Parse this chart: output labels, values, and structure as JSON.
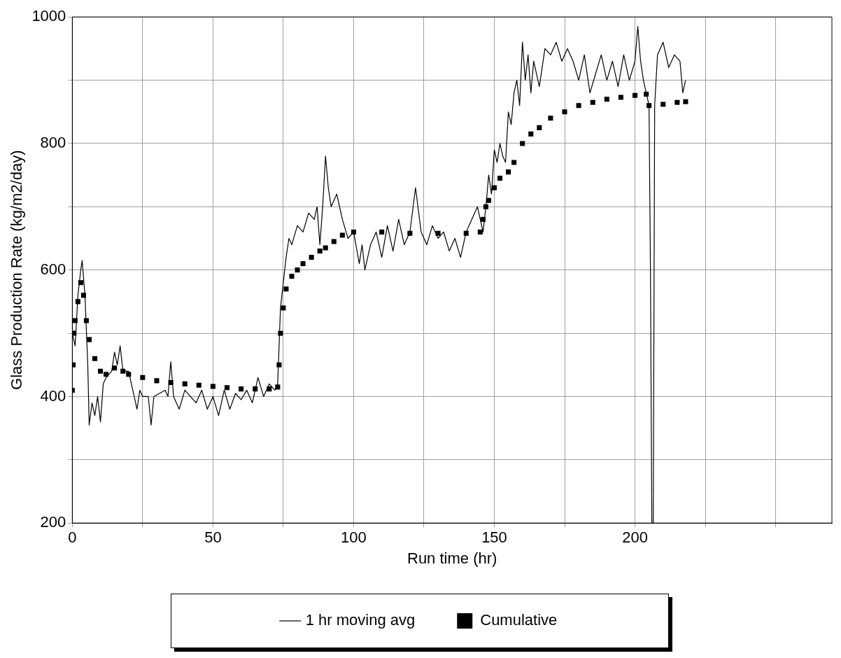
{
  "chart_data": {
    "type": "line",
    "xlabel": "Run time (hr)",
    "ylabel": "Glass Production Rate (kg/m2/day)",
    "xlim": [
      0,
      270
    ],
    "xticks": [
      0,
      {
        "value": 25,
        "label": null
      },
      50,
      {
        "value": 75,
        "label": null
      },
      100,
      {
        "value": 125,
        "label": null
      },
      150,
      {
        "value": 175,
        "label": null
      },
      200,
      {
        "value": 225,
        "label": null
      },
      {
        "value": 250,
        "label": null
      }
    ],
    "ylim": [
      200,
      1000
    ],
    "yticks": [
      200,
      {
        "value": 300,
        "label": null
      },
      400,
      {
        "value": 500,
        "label": null
      },
      600,
      {
        "value": 700,
        "label": null
      },
      800,
      {
        "value": 900,
        "label": null
      },
      1000
    ],
    "grid": true,
    "legend": "bottom",
    "series": [
      {
        "name": "1 hr moving avg",
        "type": "line",
        "marker": "none",
        "color": "#000000",
        "x": [
          0,
          1,
          2,
          3,
          3.5,
          4.5,
          5.5,
          6,
          7,
          8,
          9,
          10,
          11,
          12,
          14,
          15,
          16,
          17,
          18,
          20,
          21,
          22,
          23,
          24,
          25,
          27,
          28,
          29,
          31,
          33,
          34,
          35,
          36,
          38,
          40,
          42,
          44,
          46,
          48,
          50,
          52,
          54,
          56,
          58,
          60,
          62,
          64,
          66,
          68,
          70,
          72,
          73,
          74,
          75,
          76,
          77,
          78,
          80,
          82,
          84,
          86,
          87,
          88,
          89,
          90,
          91,
          92,
          94,
          96,
          98,
          100,
          102,
          103,
          104,
          106,
          108,
          110,
          112,
          114,
          116,
          118,
          120,
          122,
          124,
          126,
          128,
          130,
          132,
          134,
          136,
          138,
          140,
          142,
          144,
          146,
          147,
          148,
          149,
          150,
          151,
          152,
          153,
          154,
          155,
          156,
          157,
          158,
          159,
          160,
          161,
          162,
          163,
          164,
          166,
          168,
          170,
          172,
          174,
          176,
          178,
          180,
          182,
          184,
          186,
          188,
          190,
          192,
          194,
          196,
          198,
          200,
          201,
          202,
          203,
          204,
          205,
          205.5,
          206,
          206.5,
          207,
          208,
          210,
          212,
          214,
          216,
          217,
          218
        ],
        "values": [
          500,
          480,
          560,
          600,
          615,
          560,
          450,
          355,
          390,
          370,
          400,
          360,
          420,
          430,
          440,
          470,
          450,
          480,
          440,
          440,
          420,
          400,
          380,
          410,
          400,
          400,
          355,
          400,
          405,
          410,
          400,
          455,
          400,
          380,
          410,
          400,
          390,
          410,
          380,
          400,
          370,
          410,
          380,
          405,
          395,
          410,
          390,
          430,
          400,
          420,
          410,
          420,
          540,
          580,
          620,
          650,
          640,
          670,
          660,
          690,
          680,
          700,
          640,
          700,
          780,
          730,
          700,
          720,
          680,
          650,
          660,
          610,
          640,
          600,
          640,
          660,
          620,
          670,
          630,
          680,
          640,
          660,
          730,
          660,
          640,
          670,
          650,
          660,
          630,
          650,
          620,
          660,
          680,
          700,
          660,
          700,
          750,
          720,
          790,
          770,
          800,
          780,
          770,
          850,
          830,
          880,
          900,
          860,
          960,
          900,
          940,
          880,
          930,
          890,
          950,
          940,
          960,
          930,
          950,
          930,
          900,
          940,
          880,
          910,
          940,
          900,
          930,
          890,
          940,
          900,
          930,
          985,
          930,
          900,
          880,
          860,
          600,
          200,
          200,
          860,
          940,
          960,
          920,
          940,
          930,
          880,
          900
        ]
      },
      {
        "name": "Cumulative",
        "type": "scatter",
        "marker": "square",
        "color": "#000000",
        "x": [
          0,
          0.3,
          0.6,
          1,
          2,
          3,
          4,
          5,
          6,
          8,
          10,
          12,
          15,
          18,
          20,
          25,
          30,
          35,
          40,
          45,
          50,
          55,
          60,
          65,
          70,
          73,
          73.5,
          74,
          75,
          76,
          78,
          80,
          82,
          85,
          88,
          90,
          93,
          96,
          100,
          110,
          120,
          130,
          140,
          145,
          146,
          147,
          148,
          150,
          152,
          155,
          157,
          160,
          163,
          166,
          170,
          175,
          180,
          185,
          190,
          195,
          200,
          204,
          205,
          210,
          215,
          218
        ],
        "values": [
          410,
          450,
          500,
          520,
          550,
          580,
          560,
          520,
          490,
          460,
          440,
          435,
          445,
          440,
          435,
          430,
          425,
          422,
          420,
          418,
          416,
          414,
          412,
          412,
          412,
          415,
          450,
          500,
          540,
          570,
          590,
          600,
          610,
          620,
          630,
          635,
          645,
          655,
          660,
          660,
          658,
          658,
          658,
          660,
          680,
          700,
          710,
          730,
          745,
          755,
          770,
          800,
          815,
          825,
          840,
          850,
          860,
          865,
          870,
          873,
          876,
          878,
          860,
          862,
          865,
          866
        ]
      }
    ]
  }
}
